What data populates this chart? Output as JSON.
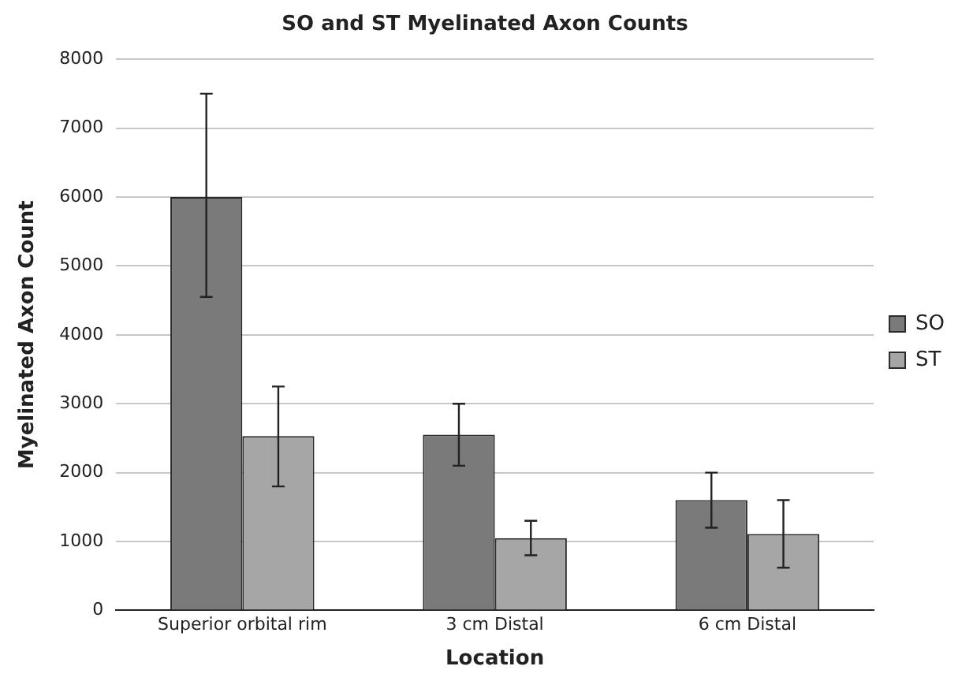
{
  "chart_data": {
    "type": "bar",
    "title": "SO and ST Myelinated Axon Counts",
    "xlabel": "Location",
    "ylabel": "Myelinated Axon Count",
    "categories": [
      "Superior orbital rim",
      "3 cm Distal",
      "6 cm Distal"
    ],
    "series": [
      {
        "name": "SO",
        "color": "#7a7a7a",
        "values": [
          6000,
          2550,
          1600
        ],
        "errors": [
          [
            4550,
            7500
          ],
          [
            2100,
            3000
          ],
          [
            1200,
            2000
          ]
        ]
      },
      {
        "name": "ST",
        "color": "#a6a6a6",
        "values": [
          2530,
          1050,
          1110
        ],
        "errors": [
          [
            1800,
            3250
          ],
          [
            800,
            1300
          ],
          [
            620,
            1600
          ]
        ]
      }
    ],
    "ylim": [
      0,
      8000
    ],
    "yticks": [
      0,
      1000,
      2000,
      3000,
      4000,
      5000,
      6000,
      7000,
      8000
    ],
    "grid": "y",
    "legend": "right"
  }
}
